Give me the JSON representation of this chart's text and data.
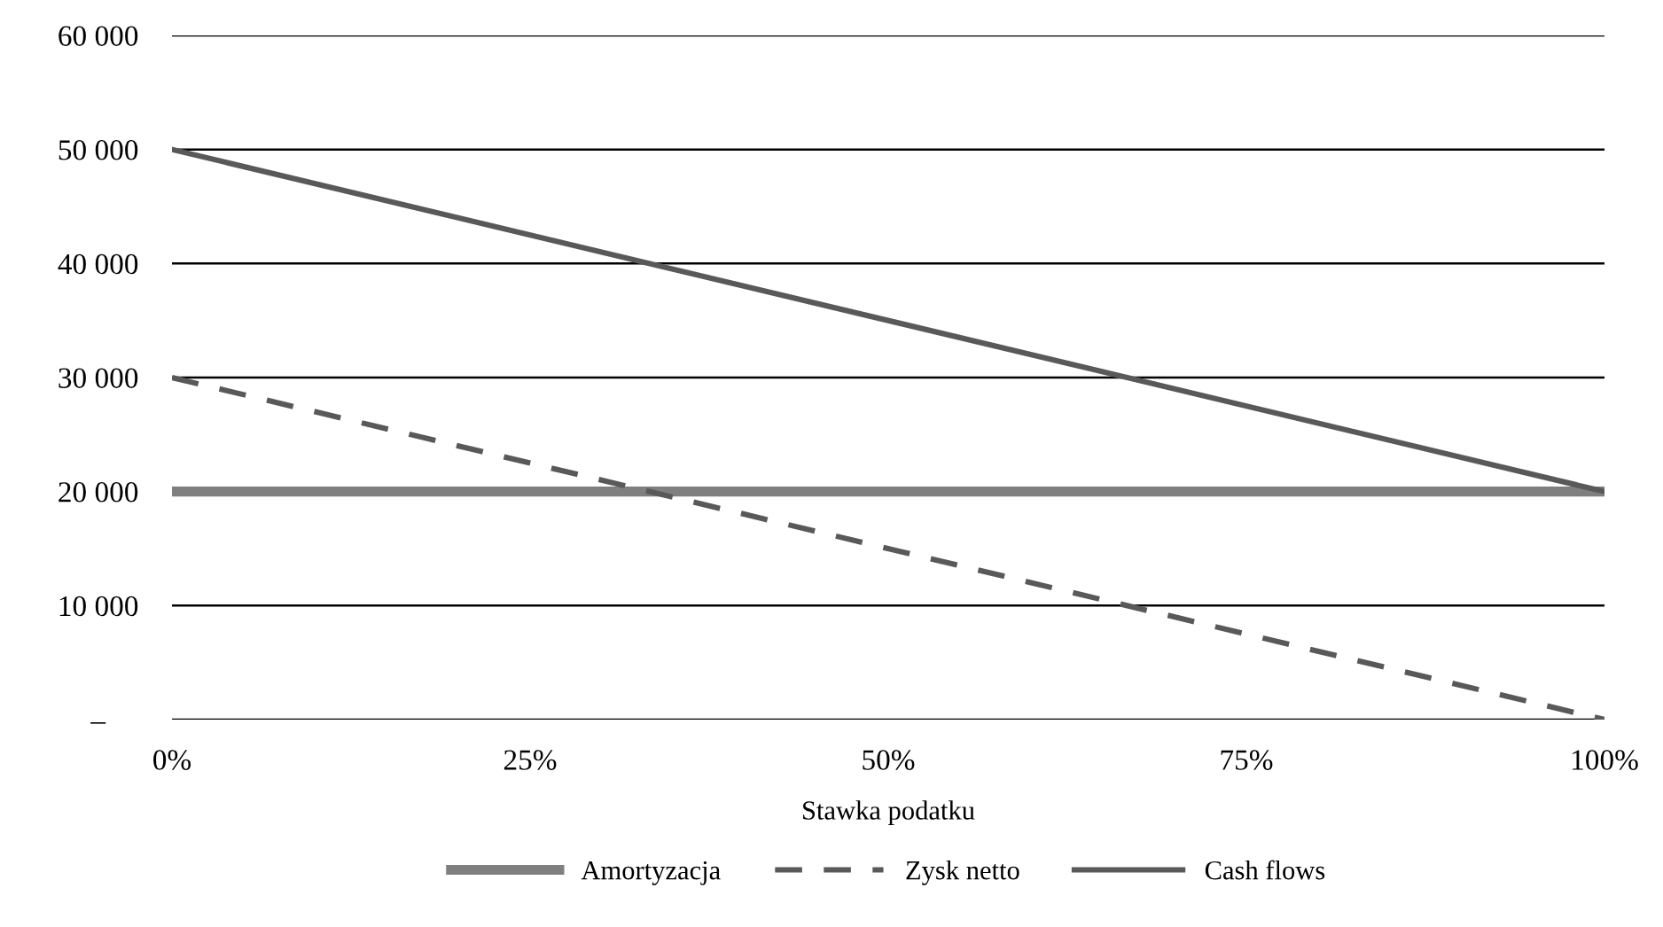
{
  "chart_data": {
    "type": "line",
    "xlabel": "Stawka podatku",
    "x": [
      0,
      100
    ],
    "series": [
      {
        "name": "Amortyzacja",
        "color": "#7f7f7f",
        "values": [
          20000,
          20000
        ],
        "line_style": "solid"
      },
      {
        "name": "Zysk netto",
        "color": "#595959",
        "values": [
          30000,
          0
        ],
        "line_style": "dashed"
      },
      {
        "name": "Cash flows",
        "color": "#595959",
        "values": [
          50000,
          20000
        ],
        "line_style": "solid"
      }
    ],
    "xlim": [
      0,
      100
    ],
    "xticks": [
      {
        "value": 0,
        "label": "0%"
      },
      {
        "value": 25,
        "label": "25%"
      },
      {
        "value": 50,
        "label": "50%"
      },
      {
        "value": 75,
        "label": "75%"
      },
      {
        "value": 100,
        "label": "100%"
      }
    ],
    "ylim": [
      0,
      60000
    ],
    "yticks": [
      {
        "value": 0,
        "label": "–"
      },
      {
        "value": 10000,
        "label": "10 000"
      },
      {
        "value": 20000,
        "label": "20 000"
      },
      {
        "value": 30000,
        "label": "30 000"
      },
      {
        "value": 40000,
        "label": "40 000"
      },
      {
        "value": 50000,
        "label": "50 000"
      },
      {
        "value": 60000,
        "label": "60 000"
      }
    ],
    "grid": "y",
    "legend": "bottom",
    "marker": "none"
  }
}
